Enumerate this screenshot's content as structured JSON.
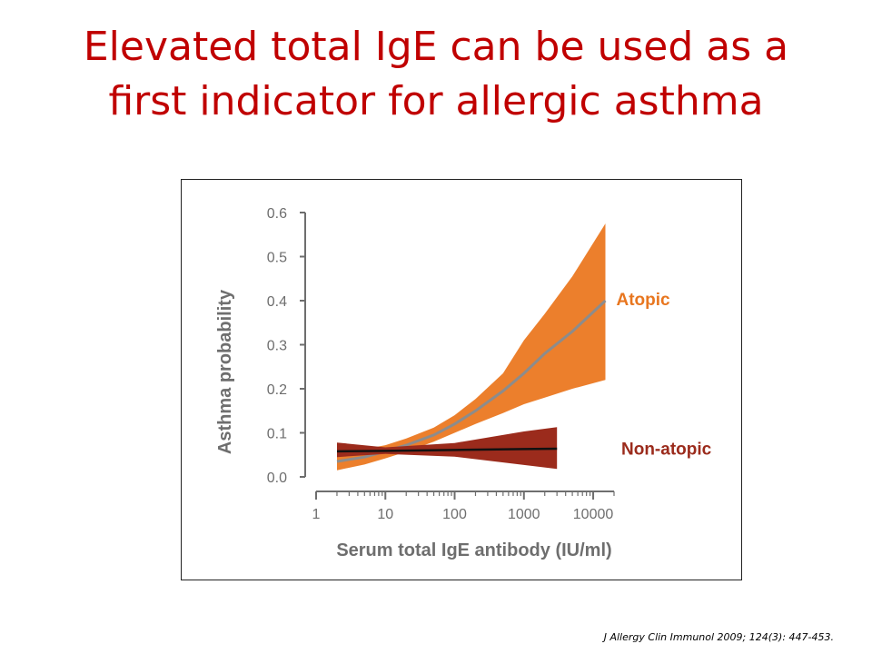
{
  "slide": {
    "title_line1": "Elevated total IgE can be used as a",
    "title_line2": "first indicator for allergic asthma",
    "citation": "J Allergy Clin Immunol 2009; 124(3): 447-453."
  },
  "colors": {
    "title": "#c00000",
    "atopic_band": "#ec7f2c",
    "atopic_line": "#8c8c8c",
    "atopic_label": "#e8761f",
    "non_atopic_band": "#9b2b1c",
    "non_atopic_line": "#111111",
    "non_atopic_label": "#9b2b1c",
    "axis": "#6e6e6e"
  },
  "chart_data": {
    "type": "area",
    "xlabel": "Serum total IgE antibody (IU/ml)",
    "ylabel": "Asthma probability",
    "xscale": "log",
    "xlim": [
      1,
      20000
    ],
    "ylim": [
      0,
      0.6
    ],
    "xticks": [
      1,
      10,
      100,
      1000,
      10000
    ],
    "xtick_labels": [
      "1",
      "10",
      "100",
      "1000",
      "10000"
    ],
    "yticks": [
      0.0,
      0.1,
      0.2,
      0.3,
      0.4,
      0.5,
      0.6
    ],
    "ytick_labels": [
      "0.0",
      "0.1",
      "0.2",
      "0.3",
      "0.4",
      "0.5",
      "0.6"
    ],
    "grid": false,
    "series": [
      {
        "name": "Atopic",
        "x": [
          2,
          5,
          10,
          20,
          50,
          100,
          200,
          500,
          1000,
          2000,
          5000,
          15000
        ],
        "y": [
          0.035,
          0.045,
          0.058,
          0.072,
          0.095,
          0.12,
          0.15,
          0.195,
          0.235,
          0.28,
          0.33,
          0.4
        ],
        "lower": [
          0.015,
          0.028,
          0.042,
          0.057,
          0.08,
          0.1,
          0.12,
          0.145,
          0.165,
          0.18,
          0.2,
          0.22
        ],
        "upper": [
          0.06,
          0.063,
          0.072,
          0.087,
          0.112,
          0.14,
          0.177,
          0.235,
          0.31,
          0.37,
          0.455,
          0.575
        ]
      },
      {
        "name": "Non-atopic",
        "x": [
          2,
          10,
          100,
          1000,
          3000
        ],
        "y": [
          0.058,
          0.059,
          0.061,
          0.063,
          0.064
        ],
        "lower": [
          0.045,
          0.052,
          0.046,
          0.027,
          0.018
        ],
        "upper": [
          0.078,
          0.067,
          0.077,
          0.103,
          0.113
        ]
      }
    ]
  }
}
